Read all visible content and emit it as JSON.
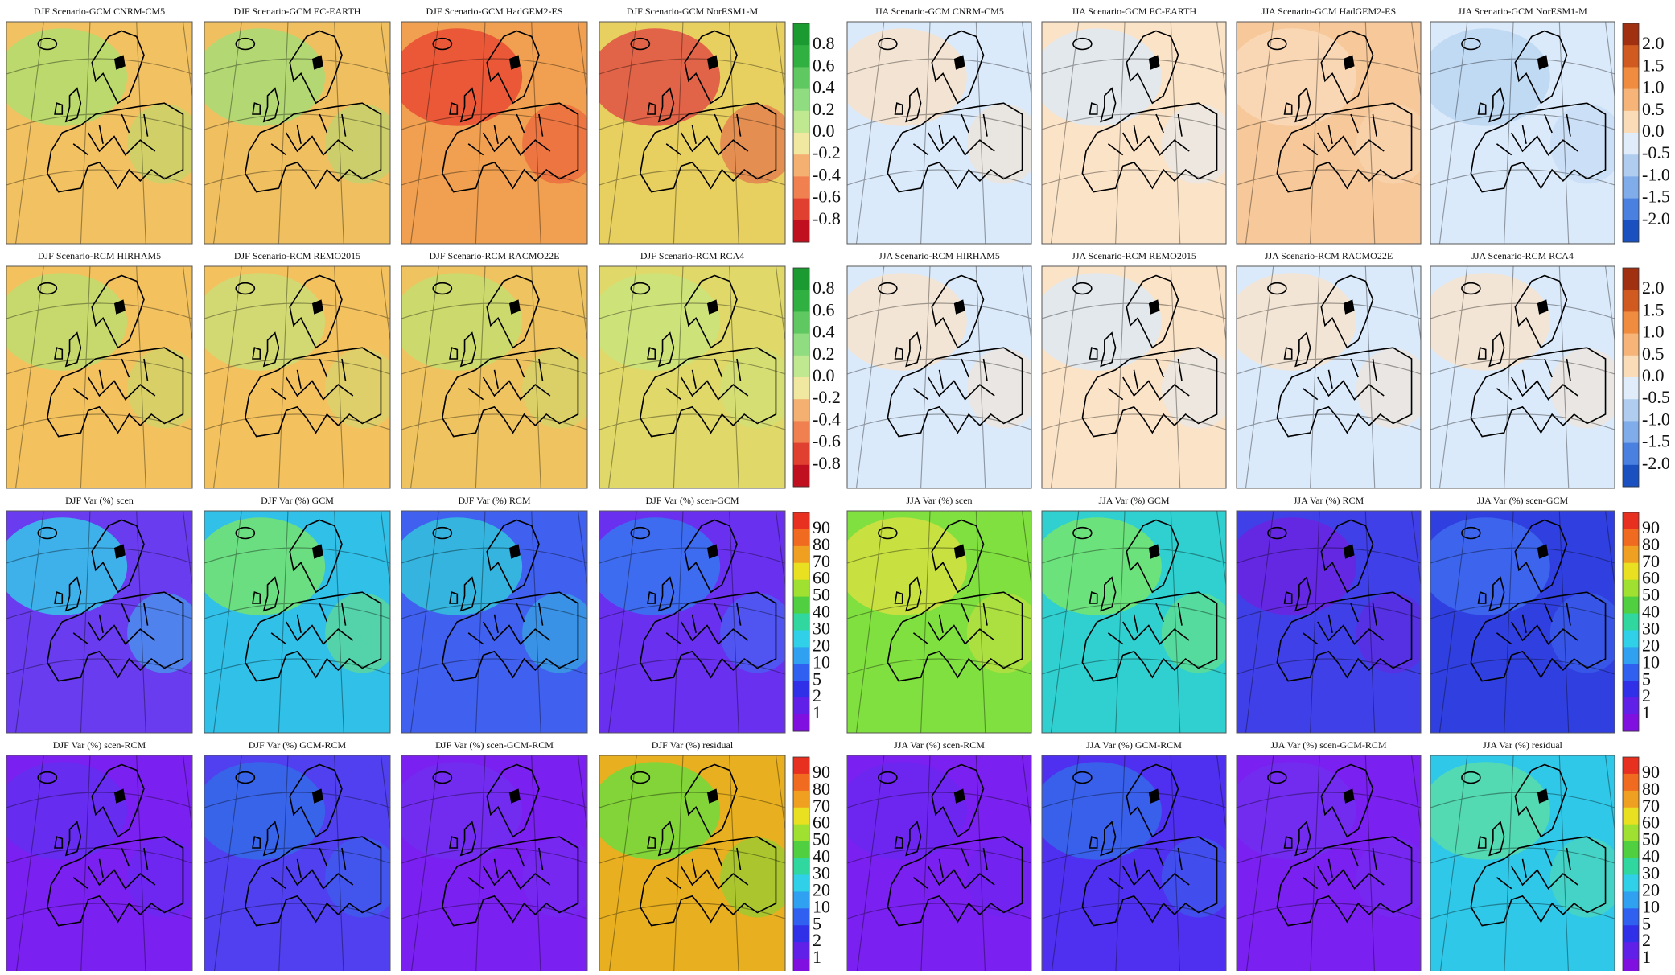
{
  "halves": [
    {
      "rows": [
        {
          "panels": [
            {
              "title": "DJF Scenario-GCM CNRM-CM5",
              "fill": "#f2c262",
              "accent": "#a8e070"
            },
            {
              "title": "DJF Scenario-GCM EC-EARTH",
              "fill": "#f0c060",
              "accent": "#9fe07a"
            },
            {
              "title": "DJF Scenario-GCM HadGEM2-ES",
              "fill": "#f0a050",
              "accent": "#e84030"
            },
            {
              "title": "DJF Scenario-GCM NorESM1-M",
              "fill": "#e8d060",
              "accent": "#e04040"
            }
          ],
          "colorbar": {
            "labels": [
              "0.8",
              "0.6",
              "0.4",
              "0.2",
              "0.0",
              "-0.2",
              "-0.4",
              "-0.6",
              "-0.8"
            ],
            "colors": [
              "#1a9a30",
              "#30b040",
              "#60c860",
              "#90dc80",
              "#c0e890",
              "#f0e8a0",
              "#f4b070",
              "#f08050",
              "#e04030",
              "#c01020"
            ]
          }
        },
        {
          "panels": [
            {
              "title": "DJF Scenario-RCM HIRHAM5",
              "fill": "#f3c25f",
              "accent": "#b8e070"
            },
            {
              "title": "DJF Scenario-RCM REMO2015",
              "fill": "#f3c25f",
              "accent": "#c8e078"
            },
            {
              "title": "DJF Scenario-RCM RACMO22E",
              "fill": "#efc460",
              "accent": "#c0e070"
            },
            {
              "title": "DJF Scenario-RCM RCA4",
              "fill": "#e0d868",
              "accent": "#c8e680"
            }
          ],
          "colorbar": {
            "labels": [
              "0.8",
              "0.6",
              "0.4",
              "0.2",
              "0.0",
              "-0.2",
              "-0.4",
              "-0.6",
              "-0.8"
            ],
            "colors": [
              "#1a9a30",
              "#30b040",
              "#60c860",
              "#90dc80",
              "#c0e890",
              "#f0e8a0",
              "#f4b070",
              "#f08050",
              "#e04030",
              "#c01020"
            ]
          }
        },
        {
          "panels": [
            {
              "title": "DJF Var (%) scen",
              "fill": "#6a3cf0",
              "accent": "#30d8e8"
            },
            {
              "title": "DJF Var (%) GCM",
              "fill": "#30c0e8",
              "accent": "#80e860"
            },
            {
              "title": "DJF Var (%) RCM",
              "fill": "#4060f0",
              "accent": "#30d0d8"
            },
            {
              "title": "DJF Var (%) scen-GCM",
              "fill": "#6a30f0",
              "accent": "#3080f0"
            }
          ],
          "colorbar": {
            "labels": [
              "90",
              "80",
              "70",
              "60",
              "50",
              "40",
              "30",
              "20",
              "10",
              "5",
              "2",
              "1"
            ],
            "colors": [
              "#e83020",
              "#f06a20",
              "#f0a020",
              "#e8e020",
              "#a0e030",
              "#50d040",
              "#30d8a0",
              "#30d0e8",
              "#30a0f0",
              "#3060f0",
              "#3030e8",
              "#6020e8",
              "#8010e0"
            ]
          }
        },
        {
          "panels": [
            {
              "title": "DJF Var (%) scen-RCM",
              "fill": "#7a20f0",
              "accent": "#6030f0"
            },
            {
              "title": "DJF Var (%) GCM-RCM",
              "fill": "#5040f0",
              "accent": "#3070e8"
            },
            {
              "title": "DJF Var (%) scen-GCM-RCM",
              "fill": "#7a20f0",
              "accent": "#7030f0"
            },
            {
              "title": "DJF Var (%) residual",
              "fill": "#e8b020",
              "accent": "#60e040"
            }
          ],
          "colorbar": {
            "labels": [
              "90",
              "80",
              "70",
              "60",
              "50",
              "40",
              "30",
              "20",
              "10",
              "5",
              "2",
              "1"
            ],
            "colors": [
              "#e83020",
              "#f06a20",
              "#f0a020",
              "#e8e020",
              "#a0e030",
              "#50d040",
              "#30d8a0",
              "#30d0e8",
              "#30a0f0",
              "#3060f0",
              "#3030e8",
              "#6020e8",
              "#8010e0"
            ]
          }
        }
      ]
    },
    {
      "rows": [
        {
          "panels": [
            {
              "title": "JJA Scenario-GCM CNRM-CM5",
              "fill": "#dbeafa",
              "accent": "#fbe0c4"
            },
            {
              "title": "JJA Scenario-GCM EC-EARTH",
              "fill": "#fbe3c8",
              "accent": "#dbeafa"
            },
            {
              "title": "JJA Scenario-GCM HadGEM2-ES",
              "fill": "#f6c89a",
              "accent": "#fbdcbc"
            },
            {
              "title": "JJA Scenario-GCM NorESM1-M",
              "fill": "#dbeafa",
              "accent": "#b8d4f2"
            }
          ],
          "colorbar": {
            "labels": [
              "2.0",
              "1.5",
              "1.0",
              "0.5",
              "0.0",
              "-0.5",
              "-1.0",
              "-1.5",
              "-2.0"
            ],
            "colors": [
              "#a03010",
              "#d05a20",
              "#f08c40",
              "#f6b478",
              "#fadcb8",
              "#e0ecfa",
              "#b0cdf0",
              "#80acea",
              "#4a80e0",
              "#1a50c0"
            ]
          }
        },
        {
          "panels": [
            {
              "title": "JJA Scenario-RCM HIRHAM5",
              "fill": "#dbeafa",
              "accent": "#fbe3c8"
            },
            {
              "title": "JJA Scenario-RCM REMO2015",
              "fill": "#fbe3c8",
              "accent": "#dbeafa"
            },
            {
              "title": "JJA Scenario-RCM RACMO22E",
              "fill": "#dbeafa",
              "accent": "#fbe3c8"
            },
            {
              "title": "JJA Scenario-RCM RCA4",
              "fill": "#dbeafa",
              "accent": "#fbe3c8"
            }
          ],
          "colorbar": {
            "labels": [
              "2.0",
              "1.5",
              "1.0",
              "0.5",
              "0.0",
              "-0.5",
              "-1.0",
              "-1.5",
              "-2.0"
            ],
            "colors": [
              "#a03010",
              "#d05a20",
              "#f08c40",
              "#f6b478",
              "#fadcb8",
              "#e0ecfa",
              "#b0cdf0",
              "#80acea",
              "#4a80e0",
              "#1a50c0"
            ]
          }
        },
        {
          "panels": [
            {
              "title": "JJA Var (%) scen",
              "fill": "#80e040",
              "accent": "#e0e040"
            },
            {
              "title": "JJA Var (%) GCM",
              "fill": "#30d0d0",
              "accent": "#80e860"
            },
            {
              "title": "JJA Var (%) RCM",
              "fill": "#4040e8",
              "accent": "#7020e0"
            },
            {
              "title": "JJA Var (%) scen-GCM",
              "fill": "#3040e0",
              "accent": "#4070f0"
            }
          ],
          "colorbar": {
            "labels": [
              "90",
              "80",
              "70",
              "60",
              "50",
              "40",
              "30",
              "20",
              "10",
              "5",
              "2",
              "1"
            ],
            "colors": [
              "#e83020",
              "#f06a20",
              "#f0a020",
              "#e8e020",
              "#a0e030",
              "#50d040",
              "#30d8a0",
              "#30d0e8",
              "#30a0f0",
              "#3060f0",
              "#3030e8",
              "#6020e8",
              "#8010e0"
            ]
          }
        },
        {
          "panels": [
            {
              "title": "JJA Var (%) scen-RCM",
              "fill": "#7a20f0",
              "accent": "#6a28f0"
            },
            {
              "title": "JJA Var (%) GCM-RCM",
              "fill": "#5030f0",
              "accent": "#3070e8"
            },
            {
              "title": "JJA Var (%) scen-GCM-RCM",
              "fill": "#7a20f0",
              "accent": "#7030f0"
            },
            {
              "title": "JJA Var (%) residual",
              "fill": "#30c8e8",
              "accent": "#60e0a0"
            }
          ],
          "colorbar": {
            "labels": [
              "90",
              "80",
              "70",
              "60",
              "50",
              "40",
              "30",
              "20",
              "10",
              "5",
              "2",
              "1"
            ],
            "colors": [
              "#e83020",
              "#f06a20",
              "#f0a020",
              "#e8e020",
              "#a0e030",
              "#50d040",
              "#30d8a0",
              "#30d0e8",
              "#30a0f0",
              "#3060f0",
              "#3030e8",
              "#6020e8",
              "#8010e0"
            ]
          }
        }
      ]
    }
  ]
}
